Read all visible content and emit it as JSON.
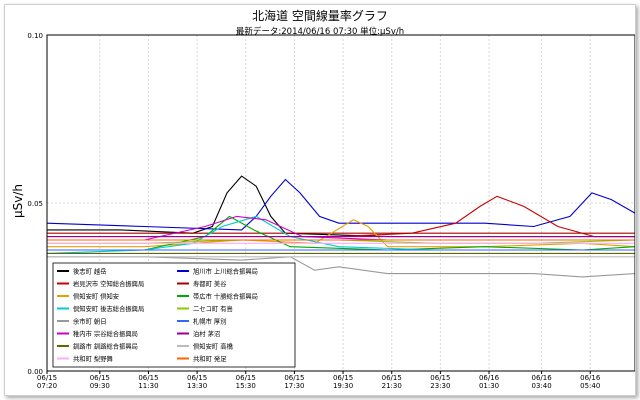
{
  "chart_data": {
    "type": "line",
    "title": "北海道 空間線量率グラフ",
    "subtitle": "最新データ:2014/06/16 07:30  単位:μSv/h",
    "ylabel": "μSv/h",
    "xlabel": "",
    "ylim": [
      0.0,
      0.1
    ],
    "yticks": [
      "0.00",
      "0.05",
      "0.10"
    ],
    "yticks_values": [
      0.0,
      0.05,
      0.1
    ],
    "xrange": [
      0,
      24.17
    ],
    "xticks": [
      {
        "t": 0,
        "date": "06/15",
        "time": "07:20"
      },
      {
        "t": 2.17,
        "date": "06/15",
        "time": "09:30"
      },
      {
        "t": 4.17,
        "date": "06/15",
        "time": "11:30"
      },
      {
        "t": 6.17,
        "date": "06/15",
        "time": "13:30"
      },
      {
        "t": 8.17,
        "date": "06/15",
        "time": "15:30"
      },
      {
        "t": 10.17,
        "date": "06/15",
        "time": "17:30"
      },
      {
        "t": 12.17,
        "date": "06/15",
        "time": "19:30"
      },
      {
        "t": 14.17,
        "date": "06/15",
        "time": "21:30"
      },
      {
        "t": 16.17,
        "date": "06/15",
        "time": "23:30"
      },
      {
        "t": 18.17,
        "date": "06/16",
        "time": "01:30"
      },
      {
        "t": 20.33,
        "date": "06/16",
        "time": "03:40"
      },
      {
        "t": 22.33,
        "date": "06/16",
        "time": "05:40"
      }
    ],
    "grid": true,
    "legend_position": "bottom-left",
    "series": [
      {
        "name": "後志町 越岳",
        "color": "#000000",
        "points": [
          [
            0,
            0.042
          ],
          [
            3,
            0.042
          ],
          [
            6,
            0.041
          ],
          [
            6.8,
            0.043
          ],
          [
            7.4,
            0.053
          ],
          [
            8,
            0.058
          ],
          [
            8.6,
            0.055
          ],
          [
            9.2,
            0.046
          ],
          [
            9.8,
            0.041
          ],
          [
            14,
            0.04
          ],
          [
            18,
            0.04
          ],
          [
            22,
            0.04
          ],
          [
            24.17,
            0.04
          ]
        ]
      },
      {
        "name": "旭川市 上川総合振興局",
        "color": "#0000cc",
        "points": [
          [
            0,
            0.044
          ],
          [
            4,
            0.043
          ],
          [
            8,
            0.042
          ],
          [
            8.6,
            0.046
          ],
          [
            9.2,
            0.052
          ],
          [
            9.8,
            0.057
          ],
          [
            10.4,
            0.053
          ],
          [
            11.2,
            0.046
          ],
          [
            12,
            0.044
          ],
          [
            14,
            0.044
          ],
          [
            16,
            0.044
          ],
          [
            18,
            0.044
          ],
          [
            20,
            0.043
          ],
          [
            21.5,
            0.046
          ],
          [
            22.4,
            0.053
          ],
          [
            23.2,
            0.051
          ],
          [
            24.17,
            0.047
          ]
        ]
      },
      {
        "name": "岩見沢市 空知総合振興局",
        "color": "#cc0000",
        "points": [
          [
            0,
            0.04
          ],
          [
            4,
            0.04
          ],
          [
            8,
            0.04
          ],
          [
            12,
            0.04
          ],
          [
            15,
            0.041
          ],
          [
            16.8,
            0.044
          ],
          [
            17.8,
            0.049
          ],
          [
            18.5,
            0.052
          ],
          [
            19.6,
            0.049
          ],
          [
            21,
            0.043
          ],
          [
            22.5,
            0.04
          ],
          [
            24.17,
            0.04
          ]
        ]
      },
      {
        "name": "寿都町 美谷",
        "color": "#aa0000",
        "points": [
          [
            0,
            0.041
          ],
          [
            6,
            0.041
          ],
          [
            12,
            0.041
          ],
          [
            18,
            0.041
          ],
          [
            24.17,
            0.041
          ]
        ]
      },
      {
        "name": "倶知安町 倶知安",
        "color": "#e8a000",
        "points": [
          [
            0,
            0.037
          ],
          [
            4,
            0.037
          ],
          [
            8,
            0.039
          ],
          [
            11,
            0.038
          ],
          [
            12.6,
            0.045
          ],
          [
            13.2,
            0.043
          ],
          [
            14,
            0.037
          ],
          [
            18,
            0.037
          ],
          [
            22,
            0.038
          ],
          [
            24.17,
            0.037
          ]
        ]
      },
      {
        "name": "帯広市 十勝総合振興局",
        "color": "#00aa00",
        "points": [
          [
            0,
            0.036
          ],
          [
            4,
            0.036
          ],
          [
            6.5,
            0.04
          ],
          [
            7.5,
            0.046
          ],
          [
            8.5,
            0.042
          ],
          [
            10,
            0.037
          ],
          [
            14,
            0.036
          ],
          [
            18,
            0.037
          ],
          [
            22,
            0.036
          ],
          [
            24.17,
            0.037
          ]
        ]
      },
      {
        "name": "倶知安町 後志総合振興局",
        "color": "#00cccc",
        "points": [
          [
            0,
            0.035
          ],
          [
            4,
            0.036
          ],
          [
            6,
            0.038
          ],
          [
            7.2,
            0.043
          ],
          [
            8.6,
            0.046
          ],
          [
            10,
            0.04
          ],
          [
            12,
            0.037
          ],
          [
            16,
            0.036
          ],
          [
            20,
            0.036
          ],
          [
            24.17,
            0.036
          ]
        ]
      },
      {
        "name": "二セコ町 有島",
        "color": "#88cc00",
        "points": [
          [
            0,
            0.038
          ],
          [
            4,
            0.038
          ],
          [
            8,
            0.039
          ],
          [
            12,
            0.039
          ],
          [
            16,
            0.038
          ],
          [
            20,
            0.038
          ],
          [
            24.17,
            0.039
          ]
        ]
      },
      {
        "name": "余市町 朝日",
        "color": "#999999",
        "points": [
          [
            0,
            0.034
          ],
          [
            4,
            0.034
          ],
          [
            8,
            0.033
          ],
          [
            10,
            0.034
          ],
          [
            11,
            0.03
          ],
          [
            12,
            0.031
          ],
          [
            14,
            0.029
          ],
          [
            16,
            0.029
          ],
          [
            18,
            0.029
          ],
          [
            20,
            0.029
          ],
          [
            22,
            0.028
          ],
          [
            24.17,
            0.029
          ]
        ]
      },
      {
        "name": "札幌市 厚別",
        "color": "#3366ff",
        "points": [
          [
            0,
            0.036
          ],
          [
            6,
            0.036
          ],
          [
            12,
            0.036
          ],
          [
            18,
            0.036
          ],
          [
            24.17,
            0.036
          ]
        ]
      },
      {
        "name": "稚内市 宗谷総合振興局",
        "color": "#cc00cc",
        "points": [
          [
            0,
            0.039
          ],
          [
            4,
            0.039
          ],
          [
            6.5,
            0.043
          ],
          [
            7.8,
            0.046
          ],
          [
            9,
            0.045
          ],
          [
            10.5,
            0.04
          ],
          [
            14,
            0.039
          ],
          [
            18,
            0.039
          ],
          [
            22,
            0.039
          ],
          [
            24.17,
            0.039
          ]
        ]
      },
      {
        "name": "泊村 茅沼",
        "color": "#990099",
        "points": [
          [
            0,
            0.04
          ],
          [
            6,
            0.04
          ],
          [
            12,
            0.04
          ],
          [
            18,
            0.04
          ],
          [
            24.17,
            0.04
          ]
        ]
      },
      {
        "name": "釧路市 釧路総合振興局",
        "color": "#666600",
        "points": [
          [
            0,
            0.035
          ],
          [
            6,
            0.035
          ],
          [
            12,
            0.035
          ],
          [
            18,
            0.035
          ],
          [
            24.17,
            0.035
          ]
        ]
      },
      {
        "name": "倶知安町 高橋",
        "color": "#bbbbbb",
        "points": [
          [
            0,
            0.034
          ],
          [
            6,
            0.034
          ],
          [
            12,
            0.034
          ],
          [
            18,
            0.034
          ],
          [
            24.17,
            0.034
          ]
        ]
      },
      {
        "name": "共和町 梨野舞",
        "color": "#ffaaff",
        "points": [
          [
            0,
            0.038
          ],
          [
            6,
            0.038
          ],
          [
            12,
            0.038
          ],
          [
            18,
            0.038
          ],
          [
            24.17,
            0.038
          ]
        ]
      },
      {
        "name": "共和町 発足",
        "color": "#ff6600",
        "points": [
          [
            0,
            0.039
          ],
          [
            6,
            0.039
          ],
          [
            12,
            0.039
          ],
          [
            18,
            0.039
          ],
          [
            24.17,
            0.039
          ]
        ]
      }
    ]
  }
}
